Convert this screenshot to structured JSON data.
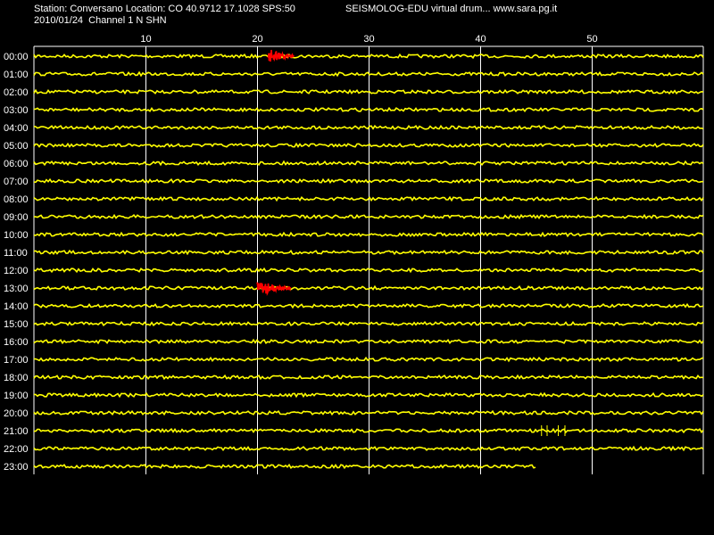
{
  "header": {
    "station_line": "Station: Conversano Location: CO 40.9712 17.1028 SPS:50",
    "date_line": "2010/01/24  Channel 1 N SHN",
    "brand_line": "SEISMOLOG-EDU virtual drum... www.sara.pg.it"
  },
  "colors": {
    "background": "#000000",
    "trace": "#ffff00",
    "event": "#ff0000",
    "grid": "#ffffff",
    "text": "#ffffff"
  },
  "chart_data": {
    "type": "line",
    "title": "",
    "xlabel": "",
    "ylabel": "",
    "x_range": [
      0,
      60
    ],
    "x_ticks": [
      10,
      20,
      30,
      40,
      50
    ],
    "row_labels": [
      "00:00",
      "01:00",
      "02:00",
      "03:00",
      "04:00",
      "05:00",
      "06:00",
      "07:00",
      "08:00",
      "09:00",
      "10:00",
      "11:00",
      "12:00",
      "13:00",
      "14:00",
      "15:00",
      "16:00",
      "17:00",
      "18:00",
      "19:00",
      "20:00",
      "21:00",
      "22:00",
      "23:00"
    ],
    "last_row_end_minute": 45,
    "grid": true,
    "events": [
      {
        "row": "00:00",
        "start_minute": 21,
        "end_minute": 23.3,
        "color": "#ff0000"
      },
      {
        "row": "13:00",
        "start_minute": 20,
        "end_minute": 23,
        "color": "#ff0000"
      }
    ],
    "spikes": [
      {
        "row": "21:00",
        "minutes": [
          45.5,
          46,
          47,
          47.6
        ]
      }
    ]
  }
}
